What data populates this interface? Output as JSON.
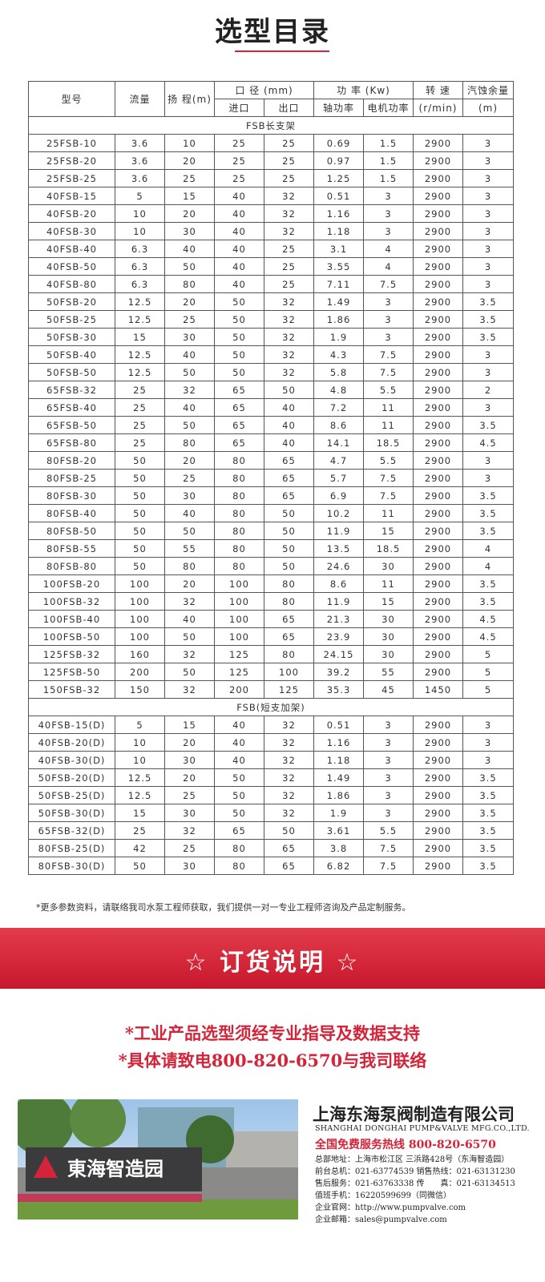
{
  "title": "选型目录",
  "table": {
    "header": {
      "model": "型号",
      "flow": "流量",
      "head": "扬 程(m)",
      "caliber": "口 径 (mm)",
      "inlet": "进口",
      "outlet": "出口",
      "power": "功 率 (Kw)",
      "shaft_power": "轴功率",
      "motor_power": "电机功率",
      "speed": "转 速",
      "speed_unit": "(r/min)",
      "npsh": "汽蚀余量",
      "npsh_unit": "(m)"
    },
    "sections": [
      {
        "label": "FSB长支架",
        "rows": [
          [
            "25FSB-10",
            "3.6",
            "10",
            "25",
            "25",
            "0.69",
            "1.5",
            "2900",
            "3"
          ],
          [
            "25FSB-20",
            "3.6",
            "20",
            "25",
            "25",
            "0.97",
            "1.5",
            "2900",
            "3"
          ],
          [
            "25FSB-25",
            "3.6",
            "25",
            "25",
            "25",
            "1.25",
            "1.5",
            "2900",
            "3"
          ],
          [
            "40FSB-15",
            "5",
            "15",
            "40",
            "32",
            "0.51",
            "3",
            "2900",
            "3"
          ],
          [
            "40FSB-20",
            "10",
            "20",
            "40",
            "32",
            "1.16",
            "3",
            "2900",
            "3"
          ],
          [
            "40FSB-30",
            "10",
            "30",
            "40",
            "32",
            "1.18",
            "3",
            "2900",
            "3"
          ],
          [
            "40FSB-40",
            "6.3",
            "40",
            "40",
            "25",
            "3.1",
            "4",
            "2900",
            "3"
          ],
          [
            "40FSB-50",
            "6.3",
            "50",
            "40",
            "25",
            "3.55",
            "4",
            "2900",
            "3"
          ],
          [
            "40FSB-80",
            "6.3",
            "80",
            "40",
            "25",
            "7.11",
            "7.5",
            "2900",
            "3"
          ],
          [
            "50FSB-20",
            "12.5",
            "20",
            "50",
            "32",
            "1.49",
            "3",
            "2900",
            "3.5"
          ],
          [
            "50FSB-25",
            "12.5",
            "25",
            "50",
            "32",
            "1.86",
            "3",
            "2900",
            "3.5"
          ],
          [
            "50FSB-30",
            "15",
            "30",
            "50",
            "32",
            "1.9",
            "3",
            "2900",
            "3.5"
          ],
          [
            "50FSB-40",
            "12.5",
            "40",
            "50",
            "32",
            "4.3",
            "7.5",
            "2900",
            "3"
          ],
          [
            "50FSB-50",
            "12.5",
            "50",
            "50",
            "32",
            "5.8",
            "7.5",
            "2900",
            "3"
          ],
          [
            "65FSB-32",
            "25",
            "32",
            "65",
            "50",
            "4.8",
            "5.5",
            "2900",
            "2"
          ],
          [
            "65FSB-40",
            "25",
            "40",
            "65",
            "40",
            "7.2",
            "11",
            "2900",
            "3"
          ],
          [
            "65FSB-50",
            "25",
            "50",
            "65",
            "40",
            "8.6",
            "11",
            "2900",
            "3.5"
          ],
          [
            "65FSB-80",
            "25",
            "80",
            "65",
            "40",
            "14.1",
            "18.5",
            "2900",
            "4.5"
          ],
          [
            "80FSB-20",
            "50",
            "20",
            "80",
            "65",
            "4.7",
            "5.5",
            "2900",
            "3"
          ],
          [
            "80FSB-25",
            "50",
            "25",
            "80",
            "65",
            "5.7",
            "7.5",
            "2900",
            "3"
          ],
          [
            "80FSB-30",
            "50",
            "30",
            "80",
            "65",
            "6.9",
            "7.5",
            "2900",
            "3.5"
          ],
          [
            "80FSB-40",
            "50",
            "40",
            "80",
            "50",
            "10.2",
            "11",
            "2900",
            "3.5"
          ],
          [
            "80FSB-50",
            "50",
            "50",
            "80",
            "50",
            "11.9",
            "15",
            "2900",
            "3.5"
          ],
          [
            "80FSB-55",
            "50",
            "55",
            "80",
            "50",
            "13.5",
            "18.5",
            "2900",
            "4"
          ],
          [
            "80FSB-80",
            "50",
            "80",
            "80",
            "50",
            "24.6",
            "30",
            "2900",
            "4"
          ],
          [
            "100FSB-20",
            "100",
            "20",
            "100",
            "80",
            "8.6",
            "11",
            "2900",
            "3.5"
          ],
          [
            "100FSB-32",
            "100",
            "32",
            "100",
            "80",
            "11.9",
            "15",
            "2900",
            "3.5"
          ],
          [
            "100FSB-40",
            "100",
            "40",
            "100",
            "65",
            "21.3",
            "30",
            "2900",
            "4.5"
          ],
          [
            "100FSB-50",
            "100",
            "50",
            "100",
            "65",
            "23.9",
            "30",
            "2900",
            "4.5"
          ],
          [
            "125FSB-32",
            "160",
            "32",
            "125",
            "80",
            "24.15",
            "30",
            "2900",
            "5"
          ],
          [
            "125FSB-50",
            "200",
            "50",
            "125",
            "100",
            "39.2",
            "55",
            "2900",
            "5"
          ],
          [
            "150FSB-32",
            "150",
            "32",
            "200",
            "125",
            "35.3",
            "45",
            "1450",
            "5"
          ]
        ]
      },
      {
        "label": "FSB(短支加架)",
        "rows": [
          [
            "40FSB-15(D)",
            "5",
            "15",
            "40",
            "32",
            "0.51",
            "3",
            "2900",
            "3"
          ],
          [
            "40FSB-20(D)",
            "10",
            "20",
            "40",
            "32",
            "1.16",
            "3",
            "2900",
            "3"
          ],
          [
            "40FSB-30(D)",
            "10",
            "30",
            "40",
            "32",
            "1.18",
            "3",
            "2900",
            "3"
          ],
          [
            "50FSB-20(D)",
            "12.5",
            "20",
            "50",
            "32",
            "1.49",
            "3",
            "2900",
            "3.5"
          ],
          [
            "50FSB-25(D)",
            "12.5",
            "25",
            "50",
            "32",
            "1.86",
            "3",
            "2900",
            "3.5"
          ],
          [
            "50FSB-30(D)",
            "15",
            "30",
            "50",
            "32",
            "1.9",
            "3",
            "2900",
            "3.5"
          ],
          [
            "65FSB-32(D)",
            "25",
            "32",
            "65",
            "50",
            "3.61",
            "5.5",
            "2900",
            "3.5"
          ],
          [
            "80FSB-25(D)",
            "42",
            "25",
            "80",
            "65",
            "3.8",
            "7.5",
            "2900",
            "3.5"
          ],
          [
            "80FSB-30(D)",
            "50",
            "30",
            "80",
            "65",
            "6.82",
            "7.5",
            "2900",
            "3.5"
          ]
        ]
      }
    ]
  },
  "note": "*更多参数资料，请联络我司水泵工程师获取，我们提供一对一专业工程师咨询及产品定制服务。",
  "order": {
    "title": "☆ 订货说明 ☆",
    "lines": [
      "*工业产品选型须经专业指导及数据支持",
      "*具体请致电800-820-6570与我司联络"
    ]
  },
  "company": {
    "sign": "東海智造园",
    "name": "上海东海泵阀制造有限公司",
    "english": "SHANGHAI DONGHAI PUMP&VALVE MFG.CO.,LTD.",
    "hotline": "全国免费服务热线  800-820-6570",
    "contacts": [
      "总部地址：上海市松江区 三浜路428号（东海智造园）",
      "前台总机：021-63774539  销售热线：021-63131230",
      "售后服务：021-63763338  传　　真：021-63134513",
      "值班手机：16220599699（同微信）",
      "企业官网：http://www.pumpvalve.com",
      "企业邮箱：sales@pumpvalve.com"
    ]
  }
}
